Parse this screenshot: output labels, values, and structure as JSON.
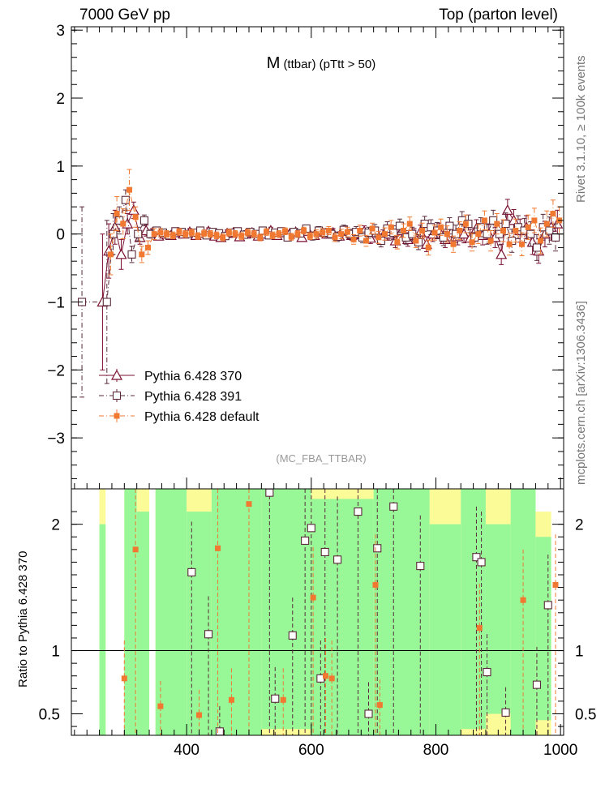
{
  "header": {
    "left": "7000 GeV pp",
    "right": "Top (parton level)"
  },
  "side": {
    "rivet": "Rivet 3.1.10, ≥ 100k events",
    "site": "mcplots.cern.ch [arXiv:1306.3436]"
  },
  "colors": {
    "s370": "#7a1030",
    "s391": "#5a2a3a",
    "sdef": "#f07830",
    "band_green": "#98f898",
    "band_yellow": "#fbfb98"
  },
  "chart_data": [
    {
      "type": "scatter",
      "title": "M",
      "title_small": "(ttbar) (pTtt > 50)",
      "watermark": "(MC_FBA_TTBAR)",
      "xlim": [
        215,
        1005
      ],
      "ylim": [
        -3.75,
        3.05
      ],
      "yticks": [
        3,
        2,
        1,
        0,
        -1,
        -2,
        -3
      ],
      "ytick_labels": [
        "3",
        "2",
        "1",
        "0",
        "−1",
        "−2",
        "−3"
      ],
      "legend_position": "lower-left",
      "series": [
        {
          "name": "Pythia 6.428 370",
          "marker": "triangle",
          "line": "solid",
          "x": [
            265,
            275,
            285,
            295,
            305,
            315,
            325,
            335,
            345,
            355,
            365,
            375,
            385,
            395,
            405,
            415,
            425,
            435,
            445,
            455,
            465,
            475,
            485,
            495,
            505,
            515,
            525,
            535,
            545,
            555,
            565,
            575,
            585,
            595,
            605,
            615,
            625,
            635,
            645,
            655,
            665,
            675,
            685,
            695,
            705,
            715,
            725,
            735,
            745,
            755,
            765,
            775,
            785,
            795,
            805,
            815,
            825,
            835,
            845,
            855,
            865,
            875,
            885,
            895,
            905,
            915,
            925,
            935,
            945,
            955,
            965,
            975,
            985,
            995
          ],
          "y": [
            -1.0,
            -0.25,
            0.1,
            -0.3,
            0.15,
            0.35,
            -0.05,
            0.05,
            0.02,
            -0.03,
            0.0,
            -0.02,
            0.02,
            0.0,
            0.03,
            -0.02,
            0.01,
            0.04,
            -0.03,
            -0.05,
            0.01,
            0.02,
            -0.04,
            0.0,
            0.02,
            -0.03,
            0.0,
            0.05,
            -0.02,
            0.02,
            0.0,
            0.03,
            -0.05,
            0.04,
            -0.02,
            0.03,
            0.0,
            0.02,
            -0.03,
            0.05,
            -0.02,
            0.0,
            0.04,
            -0.06,
            0.02,
            -0.03,
            0.0,
            -0.1,
            0.05,
            -0.08,
            -0.02,
            0.03,
            -0.15,
            0.0,
            0.05,
            -0.08,
            0.02,
            -0.04,
            0.0,
            -0.06,
            0.08,
            -0.02,
            0.0,
            -0.05,
            -0.3,
            0.35,
            0.2,
            0.05,
            0.1,
            -0.12,
            -0.25,
            0.0,
            0.1,
            0.15
          ],
          "err": [
            1.0,
            0.4,
            0.25,
            0.22,
            0.15,
            0.12,
            0.1,
            0.08,
            0.06,
            0.05,
            0.05,
            0.05,
            0.05,
            0.05,
            0.05,
            0.05,
            0.05,
            0.05,
            0.05,
            0.05,
            0.05,
            0.05,
            0.05,
            0.05,
            0.05,
            0.05,
            0.05,
            0.05,
            0.05,
            0.05,
            0.05,
            0.05,
            0.05,
            0.05,
            0.05,
            0.06,
            0.06,
            0.06,
            0.06,
            0.07,
            0.07,
            0.07,
            0.08,
            0.08,
            0.08,
            0.09,
            0.09,
            0.1,
            0.1,
            0.1,
            0.1,
            0.1,
            0.11,
            0.11,
            0.11,
            0.12,
            0.12,
            0.12,
            0.13,
            0.13,
            0.13,
            0.14,
            0.14,
            0.15,
            0.15,
            0.16,
            0.16,
            0.17,
            0.17,
            0.18,
            0.18,
            0.19,
            0.19,
            0.2
          ]
        },
        {
          "name": "Pythia 6.428 391",
          "marker": "open-square",
          "line": "dash-dot",
          "x": [
            232,
            272,
            282,
            292,
            302,
            312,
            322,
            332,
            342,
            352,
            362,
            372,
            382,
            392,
            402,
            412,
            422,
            432,
            442,
            452,
            462,
            472,
            482,
            492,
            502,
            512,
            522,
            532,
            542,
            552,
            562,
            572,
            582,
            592,
            602,
            612,
            622,
            632,
            642,
            652,
            662,
            672,
            682,
            692,
            702,
            712,
            722,
            732,
            742,
            752,
            762,
            772,
            782,
            792,
            802,
            812,
            822,
            832,
            842,
            852,
            862,
            872,
            882,
            892,
            902,
            912,
            922,
            932,
            942,
            952,
            962,
            972,
            982,
            992
          ],
          "y": [
            -1.0,
            -1.0,
            0.0,
            0.2,
            0.5,
            -0.3,
            0.0,
            0.2,
            0.0,
            0.05,
            0.02,
            -0.02,
            0.04,
            0.03,
            0.0,
            0.02,
            0.05,
            -0.02,
            0.03,
            0.01,
            -0.03,
            0.02,
            0.04,
            -0.01,
            0.03,
            0.0,
            0.05,
            -0.02,
            0.02,
            0.04,
            -0.05,
            0.03,
            0.01,
            0.08,
            -0.03,
            0.05,
            0.02,
            0.0,
            -0.04,
            0.06,
            0.0,
            0.03,
            -0.05,
            0.02,
            0.05,
            -0.1,
            0.08,
            0.02,
            0.12,
            -0.05,
            0.0,
            -0.12,
            0.15,
            0.1,
            0.05,
            -0.05,
            0.12,
            0.0,
            0.2,
            0.15,
            -0.05,
            0.1,
            0.0,
            0.2,
            0.0,
            0.15,
            -0.1,
            0.1,
            0.05,
            0.0,
            -0.2,
            0.1,
            0.05,
            -0.05
          ],
          "err": [
            1.4,
            1.2,
            0.3,
            0.2,
            0.15,
            0.12,
            0.1,
            0.08,
            0.06,
            0.05,
            0.05,
            0.05,
            0.05,
            0.05,
            0.05,
            0.05,
            0.05,
            0.05,
            0.05,
            0.05,
            0.05,
            0.05,
            0.05,
            0.05,
            0.05,
            0.05,
            0.05,
            0.05,
            0.05,
            0.05,
            0.05,
            0.05,
            0.05,
            0.05,
            0.06,
            0.06,
            0.06,
            0.06,
            0.07,
            0.07,
            0.07,
            0.08,
            0.08,
            0.08,
            0.09,
            0.09,
            0.1,
            0.1,
            0.1,
            0.1,
            0.1,
            0.11,
            0.11,
            0.11,
            0.12,
            0.12,
            0.12,
            0.13,
            0.13,
            0.13,
            0.14,
            0.14,
            0.15,
            0.15,
            0.16,
            0.16,
            0.17,
            0.17,
            0.18,
            0.18,
            0.19,
            0.19,
            0.2,
            0.2
          ]
        },
        {
          "name": "Pythia 6.428 default",
          "marker": "filled-square",
          "line": "dash-dot",
          "x": [
            278,
            288,
            298,
            308,
            318,
            328,
            338,
            348,
            358,
            368,
            378,
            388,
            398,
            408,
            418,
            428,
            438,
            448,
            458,
            468,
            478,
            488,
            498,
            508,
            518,
            528,
            538,
            548,
            558,
            568,
            578,
            588,
            598,
            608,
            618,
            628,
            638,
            648,
            658,
            668,
            678,
            688,
            698,
            708,
            718,
            728,
            738,
            748,
            758,
            768,
            778,
            788,
            798,
            808,
            818,
            828,
            838,
            848,
            858,
            868,
            878,
            888,
            898,
            908,
            918,
            928,
            938,
            948,
            958,
            968,
            978,
            988,
            998
          ],
          "y": [
            -0.3,
            0.3,
            0.15,
            0.65,
            0.25,
            -0.3,
            -0.2,
            0.0,
            0.02,
            0.0,
            -0.02,
            0.03,
            0.0,
            0.02,
            -0.03,
            0.01,
            0.0,
            -0.02,
            -0.05,
            0.02,
            0.0,
            -0.03,
            0.02,
            0.0,
            -0.05,
            0.03,
            -0.02,
            0.0,
            0.04,
            -0.04,
            0.0,
            0.05,
            -0.03,
            0.0,
            0.02,
            0.05,
            -0.05,
            0.0,
            0.03,
            -0.08,
            0.05,
            -0.1,
            0.08,
            -0.05,
            0.0,
            0.1,
            -0.12,
            0.05,
            0.15,
            -0.1,
            0.05,
            -0.2,
            0.02,
            0.1,
            0.0,
            -0.15,
            0.05,
            0.15,
            -0.12,
            0.0,
            0.2,
            -0.1,
            0.15,
            0.05,
            -0.15,
            0.05,
            -0.15,
            0.1,
            0.2,
            -0.1,
            0.15,
            0.3,
            0.2
          ],
          "err": [
            0.3,
            0.25,
            0.22,
            0.3,
            0.15,
            0.12,
            0.1,
            0.08,
            0.06,
            0.05,
            0.05,
            0.05,
            0.05,
            0.05,
            0.05,
            0.05,
            0.05,
            0.05,
            0.05,
            0.05,
            0.05,
            0.05,
            0.05,
            0.05,
            0.05,
            0.05,
            0.05,
            0.05,
            0.05,
            0.05,
            0.05,
            0.05,
            0.05,
            0.06,
            0.06,
            0.06,
            0.06,
            0.07,
            0.07,
            0.07,
            0.08,
            0.08,
            0.08,
            0.09,
            0.09,
            0.1,
            0.1,
            0.1,
            0.1,
            0.1,
            0.11,
            0.11,
            0.11,
            0.12,
            0.12,
            0.12,
            0.13,
            0.13,
            0.13,
            0.14,
            0.14,
            0.15,
            0.15,
            0.16,
            0.16,
            0.17,
            0.17,
            0.18,
            0.18,
            0.19,
            0.19,
            0.2,
            0.2
          ]
        }
      ]
    },
    {
      "type": "scatter",
      "ylabel": "Ratio to Pythia 6.428 370",
      "xlim": [
        215,
        1005
      ],
      "ylim": [
        0.33,
        2.28
      ],
      "reference_line": 1,
      "xticks": [
        400,
        600,
        800,
        1000
      ],
      "yticks": [
        2,
        1,
        0.5
      ],
      "ytick_labels": [
        "2",
        "1",
        "0.5"
      ],
      "bands": [
        {
          "x0": 260,
          "x1": 270,
          "green": [
            0.33,
            2.0
          ],
          "yellow": [
            0.33,
            2.28
          ]
        },
        {
          "x0": 300,
          "x1": 320,
          "green": [
            0.33,
            2.28
          ],
          "yellow": [
            0.33,
            2.28
          ]
        },
        {
          "x0": 320,
          "x1": 340,
          "green": [
            0.33,
            2.1
          ],
          "yellow": [
            0.33,
            2.28
          ]
        },
        {
          "x0": 350,
          "x1": 400,
          "green": [
            0.33,
            2.28
          ],
          "yellow": [
            0.33,
            2.28
          ]
        },
        {
          "x0": 400,
          "x1": 440,
          "green": [
            0.33,
            2.1
          ],
          "yellow": [
            0.33,
            2.28
          ]
        },
        {
          "x0": 440,
          "x1": 520,
          "green": [
            0.33,
            2.28
          ],
          "yellow": [
            0.33,
            2.28
          ]
        },
        {
          "x0": 520,
          "x1": 600,
          "green": [
            0.38,
            2.28
          ],
          "yellow": [
            0.33,
            2.28
          ]
        },
        {
          "x0": 600,
          "x1": 700,
          "green": [
            0.33,
            2.2
          ],
          "yellow": [
            0.33,
            2.28
          ]
        },
        {
          "x0": 700,
          "x1": 790,
          "green": [
            0.33,
            2.28
          ],
          "yellow": [
            0.33,
            2.28
          ]
        },
        {
          "x0": 790,
          "x1": 840,
          "green": [
            0.33,
            2.0
          ],
          "yellow": [
            0.33,
            2.28
          ]
        },
        {
          "x0": 840,
          "x1": 880,
          "green": [
            0.38,
            2.28
          ],
          "yellow": [
            0.33,
            2.28
          ]
        },
        {
          "x0": 880,
          "x1": 920,
          "green": [
            0.5,
            2.0
          ],
          "yellow": [
            0.33,
            2.28
          ]
        },
        {
          "x0": 920,
          "x1": 960,
          "green": [
            0.33,
            2.28
          ],
          "yellow": [
            0.33,
            2.28
          ]
        },
        {
          "x0": 960,
          "x1": 985,
          "green": [
            0.45,
            1.9
          ],
          "yellow": [
            0.33,
            2.1
          ]
        }
      ],
      "series": [
        {
          "name": "Pythia 6.428 391",
          "marker": "open-square",
          "x": [
            408,
            435,
            453,
            533,
            542,
            570,
            590,
            600,
            615,
            622,
            642,
            675,
            692,
            706,
            732,
            775,
            865,
            873,
            882,
            912,
            962,
            980
          ],
          "y": [
            1.62,
            1.13,
            0.36,
            2.25,
            0.62,
            1.12,
            1.87,
            1.97,
            0.78,
            1.78,
            1.72,
            2.1,
            0.5,
            1.81,
            2.14,
            1.67,
            1.74,
            1.7,
            0.83,
            0.51,
            0.73,
            1.36
          ],
          "err": [
            0.4,
            0.3,
            0.2,
            0.5,
            0.25,
            0.3,
            0.5,
            0.5,
            0.3,
            0.5,
            0.5,
            0.5,
            0.25,
            0.5,
            0.5,
            0.4,
            0.4,
            0.4,
            0.3,
            0.2,
            0.3,
            0.4
          ]
        },
        {
          "name": "Pythia 6.428 default",
          "marker": "filled-square",
          "x": [
            300,
            318,
            358,
            420,
            450,
            472,
            500,
            555,
            603,
            623,
            633,
            703,
            710,
            870,
            940,
            992
          ],
          "y": [
            0.78,
            1.8,
            0.56,
            0.49,
            1.81,
            0.61,
            2.16,
            0.61,
            1.42,
            0.8,
            0.78,
            1.52,
            0.57,
            1.18,
            1.4,
            1.52
          ],
          "err": [
            0.3,
            0.5,
            0.2,
            0.2,
            0.5,
            0.25,
            0.5,
            0.25,
            0.4,
            0.3,
            0.3,
            0.4,
            0.2,
            0.35,
            0.4,
            0.4
          ]
        }
      ]
    }
  ]
}
